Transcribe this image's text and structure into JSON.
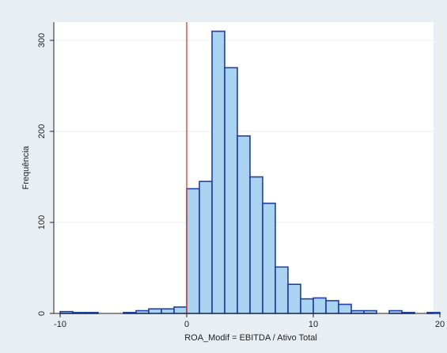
{
  "chart_data": {
    "type": "bar",
    "xlabel": "ROA_Modif = EBITDA / Ativo Total",
    "ylabel": "Frequência",
    "bin_width": 1,
    "xlim": [
      -10.5,
      19.5
    ],
    "ylim": [
      0,
      320
    ],
    "x_ticks": [
      -10,
      0,
      10,
      20
    ],
    "y_ticks": [
      0,
      100,
      200,
      300
    ],
    "reference_line": {
      "x": 0,
      "color": "#e0473f"
    },
    "bins": [
      {
        "x0": -10,
        "count": 2
      },
      {
        "x0": -9,
        "count": 1
      },
      {
        "x0": -8,
        "count": 1
      },
      {
        "x0": -5,
        "count": 1
      },
      {
        "x0": -4,
        "count": 3
      },
      {
        "x0": -3,
        "count": 5
      },
      {
        "x0": -2,
        "count": 5
      },
      {
        "x0": -1,
        "count": 7
      },
      {
        "x0": 0,
        "count": 137
      },
      {
        "x0": 1,
        "count": 145
      },
      {
        "x0": 2,
        "count": 310
      },
      {
        "x0": 3,
        "count": 270
      },
      {
        "x0": 4,
        "count": 195
      },
      {
        "x0": 5,
        "count": 150
      },
      {
        "x0": 6,
        "count": 121
      },
      {
        "x0": 7,
        "count": 51
      },
      {
        "x0": 8,
        "count": 32
      },
      {
        "x0": 9,
        "count": 16
      },
      {
        "x0": 10,
        "count": 17
      },
      {
        "x0": 11,
        "count": 14
      },
      {
        "x0": 12,
        "count": 10
      },
      {
        "x0": 13,
        "count": 3
      },
      {
        "x0": 14,
        "count": 3
      },
      {
        "x0": 16,
        "count": 3
      },
      {
        "x0": 17,
        "count": 1
      },
      {
        "x0": 19,
        "count": 1
      }
    ],
    "grid": "horizontal",
    "colors": {
      "bar_fill": "#a9d3f1",
      "bar_stroke": "#1f3fa6",
      "plot_bg": "#ffffff",
      "outer_bg": "#e9eef3",
      "grid": "#e8ecef"
    }
  }
}
